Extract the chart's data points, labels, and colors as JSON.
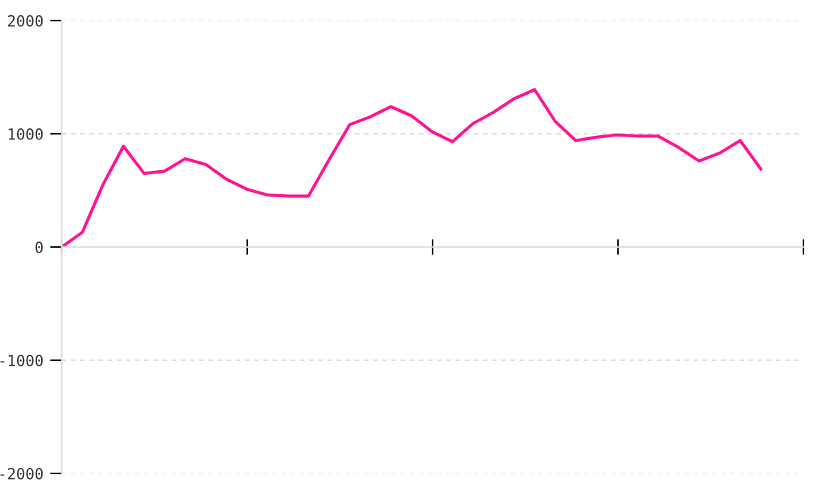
{
  "chart_data": {
    "type": "line",
    "categories": [
      null,
      null,
      null,
      null,
      null,
      null,
      null,
      null,
      null,
      null,
      null,
      null,
      null,
      null,
      null,
      null,
      null,
      null,
      null,
      null,
      null,
      null,
      null,
      null,
      null,
      null,
      null,
      null,
      null,
      null,
      null,
      null,
      null,
      null,
      null
    ],
    "series": [
      {
        "color": "#ff1493",
        "values": [
          0,
          130,
          550,
          890,
          650,
          670,
          780,
          730,
          600,
          510,
          460,
          450,
          450,
          770,
          1080,
          1150,
          1240,
          1160,
          1020,
          930,
          1090,
          1190,
          1310,
          1390,
          1110,
          940,
          970,
          990,
          980,
          980,
          880,
          760,
          830,
          940,
          690
        ]
      }
    ],
    "ylim": [
      -2000,
      2000
    ],
    "yticks": [
      -2000,
      -1000,
      0,
      1000,
      2000
    ],
    "grid": "y",
    "marker": "none",
    "line_style": "solid"
  }
}
